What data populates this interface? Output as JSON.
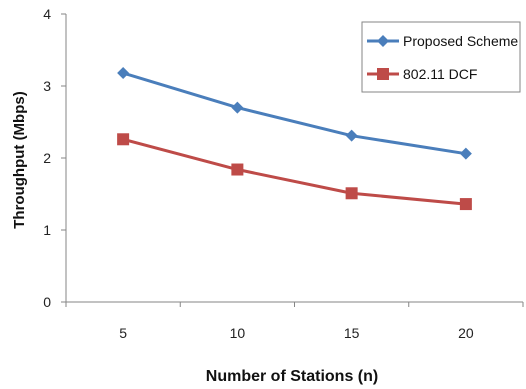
{
  "chart_data": {
    "type": "line",
    "title": "",
    "xlabel": "Number of Stations (n)",
    "ylabel": "Throughput (Mbps)",
    "categories": [
      "5",
      "10",
      "15",
      "20"
    ],
    "ylim": [
      0,
      4
    ],
    "yticks": [
      "0",
      "1",
      "2",
      "3",
      "4"
    ],
    "grid": false,
    "legend_position": "top-right",
    "series": [
      {
        "name": "Proposed Scheme",
        "values": [
          3.18,
          2.7,
          2.31,
          2.06
        ],
        "color": "#4a7ebb",
        "marker": "diamond"
      },
      {
        "name": "802.11 DCF",
        "values": [
          2.26,
          1.84,
          1.51,
          1.36
        ],
        "color": "#be4b48",
        "marker": "square"
      }
    ]
  }
}
